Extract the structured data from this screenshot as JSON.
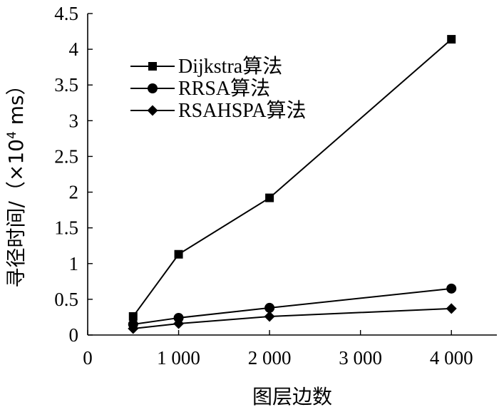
{
  "chart_data": {
    "type": "line",
    "title": "",
    "xlabel": "图层边数",
    "ylabel_prefix": "寻径时间/（×10",
    "ylabel_exponent": "4",
    "ylabel_suffix": " ms）",
    "xlim": [
      0,
      4500
    ],
    "ylim": [
      0,
      4.5
    ],
    "x_ticks": [
      0,
      1000,
      2000,
      3000,
      4000
    ],
    "x_tick_labels": [
      "0",
      "1 000",
      "2 000",
      "3 000",
      "4 000"
    ],
    "y_ticks": [
      0,
      0.5,
      1,
      1.5,
      2,
      2.5,
      3,
      3.5,
      4,
      4.5
    ],
    "y_tick_labels": [
      "0",
      "0.5",
      "1",
      "1.5",
      "2",
      "2.5",
      "3",
      "3.5",
      "4",
      "4.5"
    ],
    "grid": false,
    "legend_position": "top-left",
    "x": [
      500,
      1000,
      2000,
      4000
    ],
    "series": [
      {
        "name": "Dijkstra算法",
        "marker": "square",
        "values": [
          0.26,
          1.13,
          1.92,
          4.14
        ]
      },
      {
        "name": "RRSA算法",
        "marker": "circle",
        "values": [
          0.15,
          0.24,
          0.38,
          0.65
        ]
      },
      {
        "name": "RSAHSPA算法",
        "marker": "diamond",
        "values": [
          0.09,
          0.16,
          0.26,
          0.37
        ]
      }
    ]
  }
}
